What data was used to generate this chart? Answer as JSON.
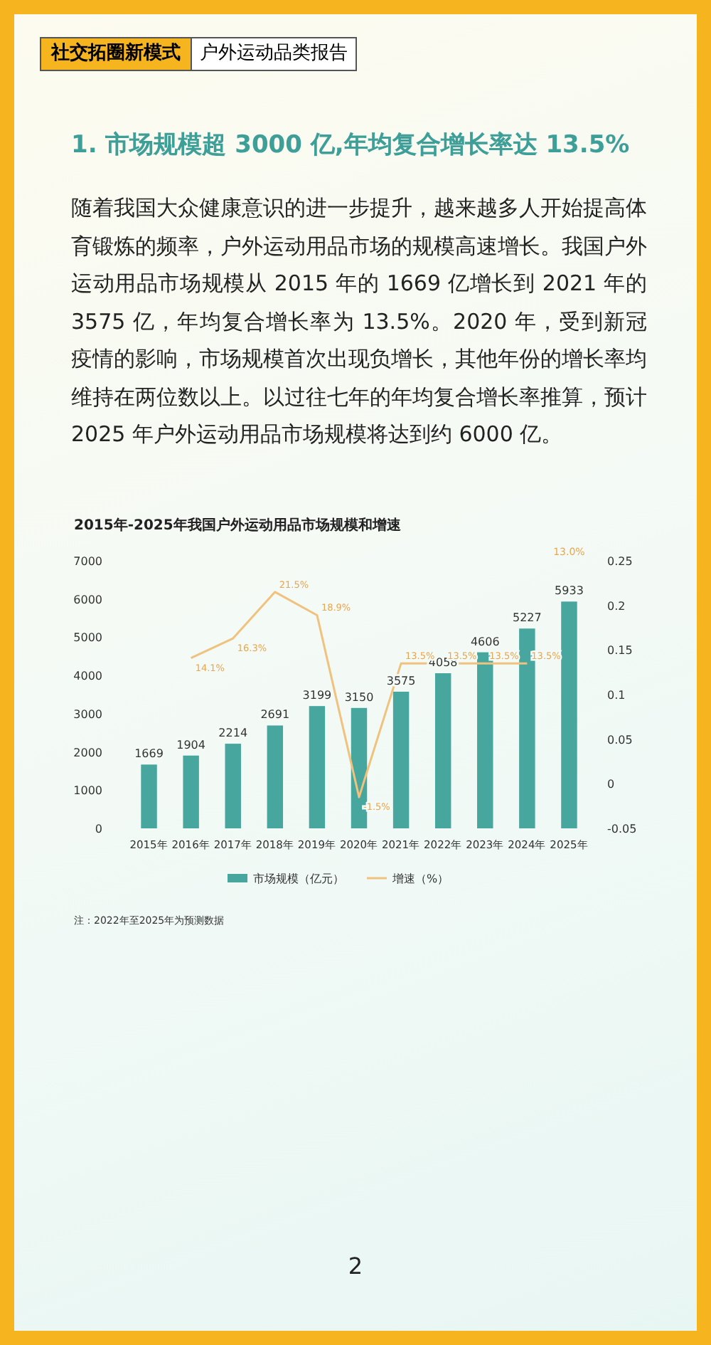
{
  "chart_data": {
    "type": "bar",
    "title": "2015年-2025年我国户外运动用品市场规模和增速",
    "annotations": [
      "社交拓圈新模式",
      "户外运动品类报告",
      "1. 市场规模超 3000 亿,年均复合增长率达 13.5%",
      "随着我国大众健康意识的进一步提升，越来越多人开始提高体育锻炼的频率，户外运动用品市场的规模高速增长。我国户外运动用品市场规模从 2015 年的 1669 亿增长到 2021 年的 3575 亿，年均复合增长率为 13.5%。2020 年，受到新冠疫情的影响，市场规模首次出现负增长，其他年份的增长率均维持在两位数以上。以过往七年的年均复合增长率推算，预计 2025 年户外运动用品市场规模将达到约 6000 亿。",
      "注：2022年至2025年为预测数据",
      "2",
      "13.0%"
    ],
    "categories": [
      "2015年",
      "2016年",
      "2017年",
      "2018年",
      "2019年",
      "2020年",
      "2021年",
      "2022年",
      "2023年",
      "2024年",
      "2025年"
    ],
    "series": [
      {
        "name": "市场规模（亿元）",
        "color": "#47a69e",
        "values": [
          1669,
          1904,
          2214,
          2691,
          3199,
          3150,
          3575,
          4058,
          4606,
          5227,
          5933
        ]
      },
      {
        "name": "增速（%）",
        "type": "line",
        "axis": "y2",
        "color": "#f0c27e",
        "values": [
          null,
          0.141,
          0.163,
          0.215,
          0.189,
          -0.015,
          0.135,
          0.135,
          0.135,
          0.135,
          null
        ],
        "value_labels": [
          null,
          "14.1%",
          "16.3%",
          "21.5%",
          "18.9%",
          "-1.5%",
          "13.5%",
          "13.5%",
          "13.5%",
          "13.5%",
          null
        ]
      }
    ],
    "data_labels": true,
    "legend": "bottom",
    "ylim": [
      0,
      7000
    ],
    "yticks": [
      0,
      1000,
      2000,
      3000,
      4000,
      5000,
      6000,
      7000
    ],
    "y2lim": [
      -0.05,
      0.25
    ],
    "y2ticks": [
      -0.05,
      0,
      0.05,
      0.1,
      0.15,
      0.2,
      0.25
    ]
  }
}
